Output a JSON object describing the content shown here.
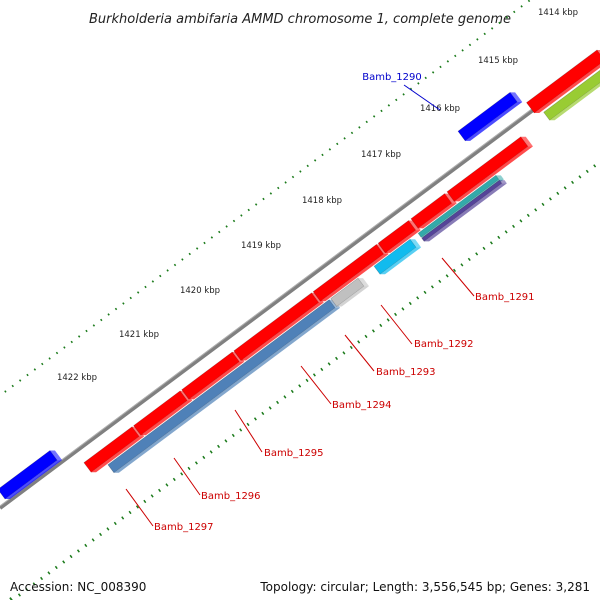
{
  "title": "Burkholderia ambifaria AMMD chromosome 1, complete genome",
  "accession_text": "Accession: NC_008390",
  "summary_text": "Topology: circular; Length: 3,556,545 bp; Genes: 3,281",
  "colors": {
    "backbone": "#808080",
    "tick": "#1a7a1a",
    "cds_red": "#ff0000",
    "cds_blue": "#0000ff",
    "gene_label_red": "#cc0000",
    "gene_label_blue": "#0000cc",
    "cog_lime": "#99cc33",
    "cog_teal": "#33aaaa",
    "cog_cyan": "#11bbee",
    "cog_grey": "#c0c0c0",
    "cog_steel": "#4f81b8"
  },
  "ticks": [
    "1414 kbp",
    "1415 kbp",
    "1416 kbp",
    "1417 kbp",
    "1418 kbp",
    "1419 kbp",
    "1420 kbp",
    "1421 kbp",
    "1422 kbp"
  ],
  "gene_labels": [
    {
      "name": "Bamb_1290",
      "color": "gene_label_blue"
    },
    {
      "name": "Bamb_1291",
      "color": "gene_label_red"
    },
    {
      "name": "Bamb_1292",
      "color": "gene_label_red"
    },
    {
      "name": "Bamb_1293",
      "color": "gene_label_red"
    },
    {
      "name": "Bamb_1294",
      "color": "gene_label_red"
    },
    {
      "name": "Bamb_1295",
      "color": "gene_label_red"
    },
    {
      "name": "Bamb_1296",
      "color": "gene_label_red"
    },
    {
      "name": "Bamb_1297",
      "color": "gene_label_red"
    }
  ]
}
